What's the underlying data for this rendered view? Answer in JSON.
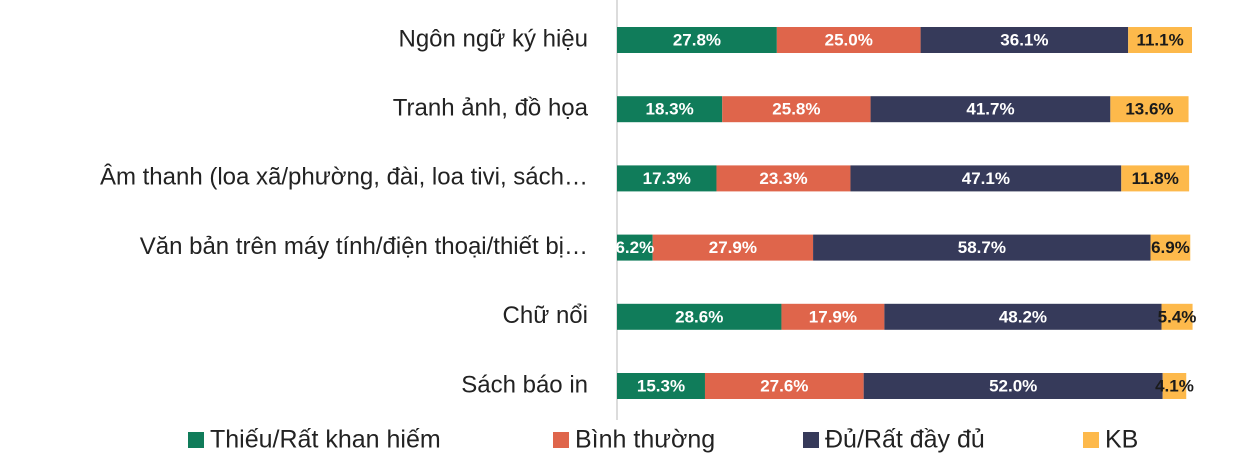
{
  "chart_data": {
    "type": "stacked_bar_horizontal",
    "categories": [
      "Ngôn ngữ ký hiệu",
      "Tranh ảnh, đồ họa",
      "Âm thanh (loa xã/phường, đài, loa tivi, sách…",
      "Văn bản trên máy tính/điện thoại/thiết bị…",
      "Chữ nổi",
      "Sách báo in"
    ],
    "series": [
      {
        "name": "Thiếu/Rất khan hiếm",
        "color": "#107c5a",
        "values": [
          27.8,
          18.3,
          17.3,
          6.2,
          28.6,
          15.3
        ],
        "value_labels": [
          "27.8%",
          "18.3%",
          "17.3%",
          "6.2%",
          "28.6%",
          "15.3%"
        ]
      },
      {
        "name": "Bình thường",
        "color": "#df654b",
        "values": [
          25.0,
          25.8,
          23.3,
          27.9,
          17.9,
          27.6
        ],
        "value_labels": [
          "25.0%",
          "25.8%",
          "23.3%",
          "27.9%",
          "17.9%",
          "27.6%"
        ]
      },
      {
        "name": "Đủ/Rất đầy đủ",
        "color": "#363a5a",
        "values": [
          36.1,
          41.7,
          47.1,
          58.7,
          48.2,
          52.0
        ],
        "value_labels": [
          "36.1%",
          "41.7%",
          "47.1%",
          "58.7%",
          "48.2%",
          "52.0%"
        ]
      },
      {
        "name": "KB",
        "color": "#fdb94b",
        "values": [
          11.1,
          13.6,
          11.8,
          6.9,
          5.4,
          4.1
        ],
        "value_labels": [
          "11.1%",
          "13.6%",
          "11.8%",
          "6.9%",
          "5.4%",
          "4.1%"
        ]
      }
    ],
    "xlim": [
      0,
      100
    ],
    "legend": "bottom"
  }
}
